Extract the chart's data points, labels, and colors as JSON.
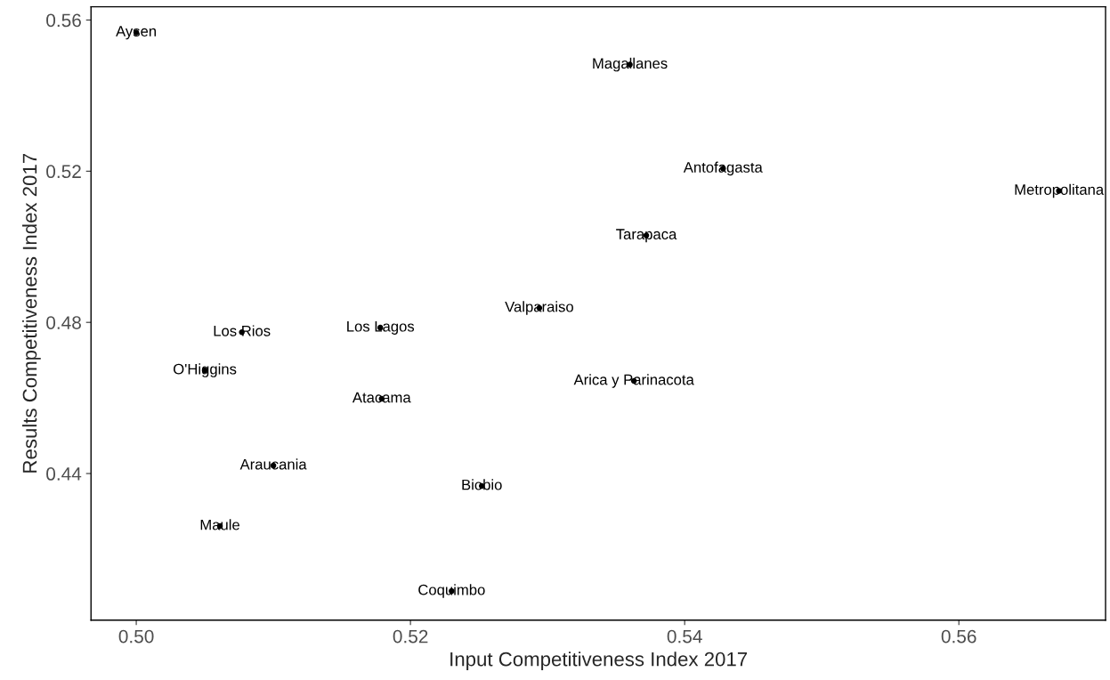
{
  "chart_data": {
    "type": "scatter",
    "xlabel": "Input Competitiveness Index 2017",
    "ylabel": "Results Competitiveness Index 2017",
    "series": [
      {
        "color": "#000000",
        "x": [
          0.5,
          0.536,
          0.5428,
          0.5673,
          0.5372,
          0.5294,
          0.5077,
          0.5178,
          0.505,
          0.5363,
          0.5179,
          0.51,
          0.5252,
          0.5061,
          0.523
        ],
        "values": [
          0.5567,
          0.5482,
          0.5207,
          0.5148,
          0.503,
          0.4838,
          0.4774,
          0.4786,
          0.4673,
          0.4645,
          0.4598,
          0.4421,
          0.4367,
          0.4261,
          0.4089
        ]
      }
    ],
    "annotations": [
      {
        "text": "Aysen",
        "x": 0.5,
        "y": 0.5567
      },
      {
        "text": "Magallanes",
        "x": 0.536,
        "y": 0.5482
      },
      {
        "text": "Antofagasta",
        "x": 0.5428,
        "y": 0.5207
      },
      {
        "text": "Metropolitana",
        "x": 0.5673,
        "y": 0.5148
      },
      {
        "text": "Tarapaca",
        "x": 0.5372,
        "y": 0.503
      },
      {
        "text": "Valparaiso",
        "x": 0.5294,
        "y": 0.4838
      },
      {
        "text": "Los Rios",
        "x": 0.5077,
        "y": 0.4774
      },
      {
        "text": "Los Lagos",
        "x": 0.5178,
        "y": 0.4786
      },
      {
        "text": "O'Higgins",
        "x": 0.505,
        "y": 0.4673
      },
      {
        "text": "Arica y Parinacota",
        "x": 0.5363,
        "y": 0.4645
      },
      {
        "text": "Atacama",
        "x": 0.5179,
        "y": 0.4598
      },
      {
        "text": "Araucania",
        "x": 0.51,
        "y": 0.4421
      },
      {
        "text": "Biobio",
        "x": 0.5252,
        "y": 0.4367
      },
      {
        "text": "Maule",
        "x": 0.5061,
        "y": 0.4261
      },
      {
        "text": "Coquimbo",
        "x": 0.523,
        "y": 0.4089
      }
    ],
    "xlim": [
      0.4967,
      0.5707
    ],
    "ylim": [
      0.4012,
      0.5635
    ],
    "xticks": [
      {
        "value": 0.5,
        "label": "0.50"
      },
      {
        "value": 0.52,
        "label": "0.52"
      },
      {
        "value": 0.54,
        "label": "0.54"
      },
      {
        "value": 0.56,
        "label": "0.56"
      }
    ],
    "yticks": [
      {
        "value": 0.44,
        "label": "0.44"
      },
      {
        "value": 0.48,
        "label": "0.48"
      },
      {
        "value": 0.52,
        "label": "0.52"
      },
      {
        "value": 0.56,
        "label": "0.56"
      }
    ],
    "grid": false,
    "marker": "circle"
  }
}
